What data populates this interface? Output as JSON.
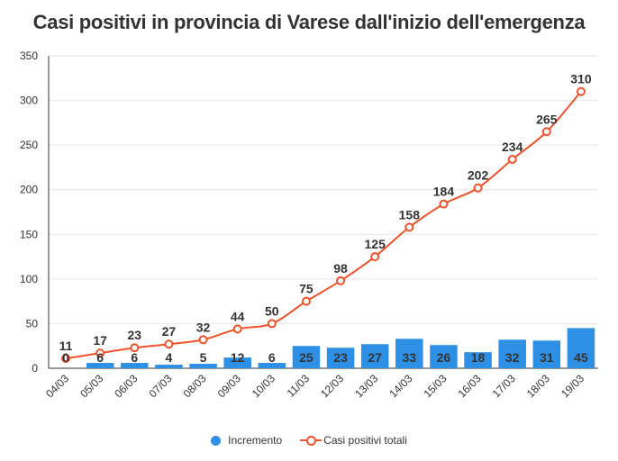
{
  "title": "Casi positivi in provincia di Varese dall'inizio dell'emergenza",
  "colors": {
    "bar": "#2e90e5",
    "line": "#f0522a",
    "grid": "#e6e6e6",
    "axis": "#333333"
  },
  "legend": {
    "bar_label": "Incremento",
    "line_label": "Casi positivi totali"
  },
  "chart_data": {
    "type": "bar",
    "categories": [
      "04/03",
      "05/03",
      "06/03",
      "07/03",
      "08/03",
      "09/03",
      "10/03",
      "11/03",
      "12/03",
      "13/03",
      "14/03",
      "15/03",
      "16/03",
      "17/03",
      "18/03",
      "19/03"
    ],
    "ylim": [
      0,
      350
    ],
    "yticks": [
      0,
      50,
      100,
      150,
      200,
      250,
      300,
      350
    ],
    "grid": true,
    "legend_position": "bottom-center",
    "series": [
      {
        "name": "Incremento",
        "type": "bar",
        "values": [
          0,
          6,
          6,
          4,
          5,
          12,
          6,
          25,
          23,
          27,
          33,
          26,
          18,
          32,
          31,
          45
        ]
      },
      {
        "name": "Casi positivi totali",
        "type": "line",
        "values": [
          11,
          17,
          23,
          27,
          32,
          44,
          50,
          75,
          98,
          125,
          158,
          184,
          202,
          234,
          265,
          310
        ]
      }
    ]
  }
}
